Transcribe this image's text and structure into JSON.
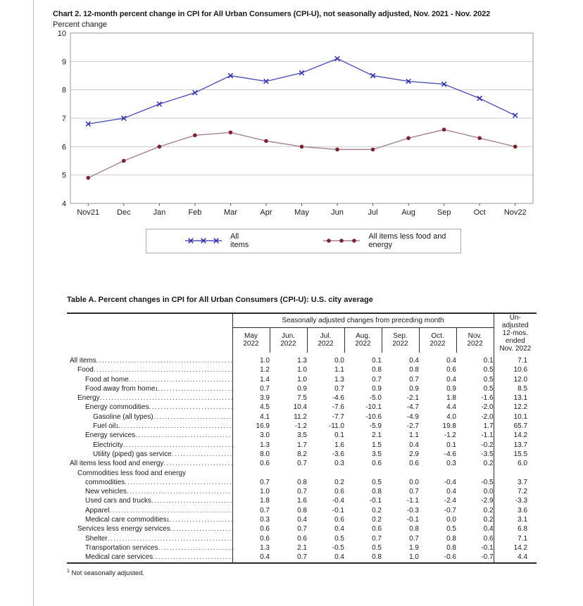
{
  "chart_data": {
    "type": "line",
    "title": "Chart 2. 12-month percent change in CPI for All Urban Consumers (CPI-U), not seasonally adjusted, Nov. 2021 - Nov. 2022",
    "ylabel": "Percent change",
    "xlabel": "",
    "ylim": [
      4,
      10
    ],
    "ytick_step": 1,
    "grid": true,
    "legend_position": "bottom",
    "categories": [
      "Nov21",
      "Dec",
      "Jan",
      "Feb",
      "Mar",
      "Apr",
      "May",
      "Jun",
      "Jul",
      "Aug",
      "Sep",
      "Oct",
      "Nov22"
    ],
    "series": [
      {
        "name": "All items",
        "marker": "x",
        "line_color": "#5252b4",
        "marker_color": "#2e2ea6",
        "values": [
          6.8,
          7.0,
          7.5,
          7.9,
          8.5,
          8.3,
          8.6,
          9.1,
          8.5,
          8.3,
          8.2,
          7.7,
          7.1
        ]
      },
      {
        "name": "All items less food and energy",
        "marker": "dot",
        "line_color": "#a5838c",
        "marker_color": "#78232f",
        "values": [
          4.9,
          5.5,
          6.0,
          6.4,
          6.5,
          6.2,
          6.0,
          5.9,
          5.9,
          6.3,
          6.6,
          6.3,
          6.0
        ]
      }
    ],
    "axis_colors": {
      "gridline": "#c9c9c9",
      "frame": "#999999",
      "baseline": "#555555"
    }
  },
  "table": {
    "title": "Table A. Percent changes in CPI for All Urban Consumers (CPI-U): U.S. city average",
    "group_header": "Seasonally adjusted changes from preceding month",
    "month_columns": [
      "May\n2022",
      "Jun.\n2022",
      "Jul.\n2022",
      "Aug.\n2022",
      "Sep.\n2022",
      "Oct.\n2022",
      "Nov.\n2022"
    ],
    "last_column_header": "Un-\nadjusted\n12-mos.\nended\nNov. 2022",
    "rows": [
      {
        "label": "All items",
        "indent": 0,
        "values": [
          "1.0",
          "1.3",
          "0.0",
          "0.1",
          "0.4",
          "0.4",
          "0.1",
          "7.1"
        ]
      },
      {
        "label": "Food",
        "indent": 1,
        "values": [
          "1.2",
          "1.0",
          "1.1",
          "0.8",
          "0.8",
          "0.6",
          "0.5",
          "10.6"
        ]
      },
      {
        "label": "Food at home",
        "indent": 2,
        "values": [
          "1.4",
          "1.0",
          "1.3",
          "0.7",
          "0.7",
          "0.4",
          "0.5",
          "12.0"
        ]
      },
      {
        "label": "Food away from home",
        "sup": "1",
        "indent": 2,
        "values": [
          "0.7",
          "0.9",
          "0.7",
          "0.9",
          "0.9",
          "0.9",
          "0.5",
          "8.5"
        ]
      },
      {
        "label": "Energy",
        "indent": 1,
        "values": [
          "3.9",
          "7.5",
          "-4.6",
          "-5.0",
          "-2.1",
          "1.8",
          "-1.6",
          "13.1"
        ]
      },
      {
        "label": "Energy commodities",
        "indent": 2,
        "values": [
          "4.5",
          "10.4",
          "-7.6",
          "-10.1",
          "-4.7",
          "4.4",
          "-2.0",
          "12.2"
        ]
      },
      {
        "label": "Gasoline (all types)",
        "indent": 3,
        "values": [
          "4.1",
          "11.2",
          "-7.7",
          "-10.6",
          "-4.9",
          "4.0",
          "-2.0",
          "10.1"
        ]
      },
      {
        "label": "Fuel oil",
        "sup": "1",
        "indent": 3,
        "values": [
          "16.9",
          "-1.2",
          "-11.0",
          "-5.9",
          "-2.7",
          "19.8",
          "1.7",
          "65.7"
        ]
      },
      {
        "label": "Energy services",
        "indent": 2,
        "values": [
          "3.0",
          "3.5",
          "0.1",
          "2.1",
          "1.1",
          "-1.2",
          "-1.1",
          "14.2"
        ]
      },
      {
        "label": "Electricity",
        "indent": 3,
        "values": [
          "1.3",
          "1.7",
          "1.6",
          "1.5",
          "0.4",
          "0.1",
          "-0.2",
          "13.7"
        ]
      },
      {
        "label": "Utility (piped) gas service",
        "indent": 3,
        "values": [
          "8.0",
          "8.2",
          "-3.6",
          "3.5",
          "2.9",
          "-4.6",
          "-3.5",
          "15.5"
        ]
      },
      {
        "label": "All items less food and energy",
        "indent": 0,
        "values": [
          "0.6",
          "0.7",
          "0.3",
          "0.6",
          "0.6",
          "0.3",
          "0.2",
          "6.0"
        ]
      },
      {
        "label": "Commodities less food and energy",
        "label2": "commodities",
        "indent": 1,
        "values": [
          "0.7",
          "0.8",
          "0.2",
          "0.5",
          "0.0",
          "-0.4",
          "-0.5",
          "3.7"
        ]
      },
      {
        "label": "New vehicles",
        "indent": 2,
        "values": [
          "1.0",
          "0.7",
          "0.6",
          "0.8",
          "0.7",
          "0.4",
          "0.0",
          "7.2"
        ]
      },
      {
        "label": "Used cars and trucks",
        "indent": 2,
        "values": [
          "1.8",
          "1.6",
          "-0.4",
          "-0.1",
          "-1.1",
          "-2.4",
          "-2.9",
          "-3.3"
        ]
      },
      {
        "label": "Apparel",
        "indent": 2,
        "values": [
          "0.7",
          "0.8",
          "-0.1",
          "0.2",
          "-0.3",
          "-0.7",
          "0.2",
          "3.6"
        ]
      },
      {
        "label": "Medical care commodities",
        "sup": "1",
        "indent": 2,
        "values": [
          "0.3",
          "0.4",
          "0.6",
          "0.2",
          "-0.1",
          "0.0",
          "0.2",
          "3.1"
        ]
      },
      {
        "label": "Services less energy services",
        "indent": 1,
        "values": [
          "0.6",
          "0.7",
          "0.4",
          "0.6",
          "0.8",
          "0.5",
          "0.4",
          "6.8"
        ]
      },
      {
        "label": "Shelter",
        "indent": 2,
        "values": [
          "0.6",
          "0.6",
          "0.5",
          "0.7",
          "0.7",
          "0.8",
          "0.6",
          "7.1"
        ]
      },
      {
        "label": "Transportation services",
        "indent": 2,
        "values": [
          "1.3",
          "2.1",
          "-0.5",
          "0.5",
          "1.9",
          "0.8",
          "-0.1",
          "14.2"
        ]
      },
      {
        "label": "Medical care services",
        "indent": 2,
        "values": [
          "0.4",
          "0.7",
          "0.4",
          "0.8",
          "1.0",
          "-0.6",
          "-0.7",
          "4.4"
        ]
      }
    ],
    "footnote_marker": "1",
    "footnote_text": "Not seasonally adjusted."
  }
}
